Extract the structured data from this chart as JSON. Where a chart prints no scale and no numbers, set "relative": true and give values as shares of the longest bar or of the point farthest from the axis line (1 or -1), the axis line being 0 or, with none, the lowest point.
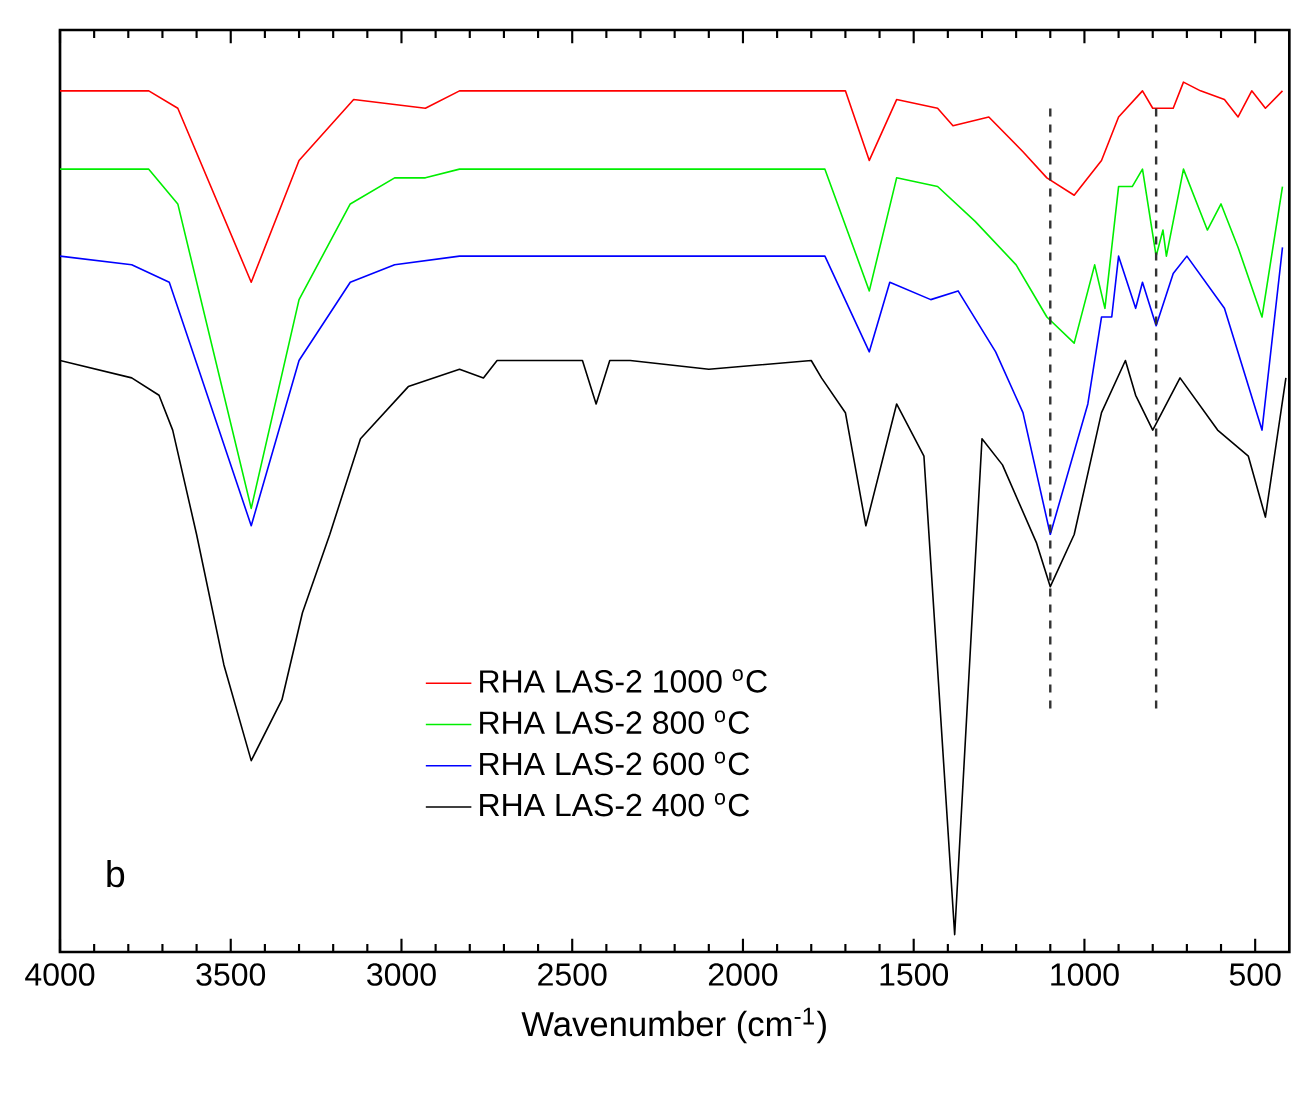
{
  "chart_data": {
    "type": "line",
    "relative": true,
    "xlabel": "Wavenumber (cm$^{-1}$)",
    "xlim": [
      4000,
      400
    ],
    "xticks": [
      4000,
      3500,
      3000,
      2500,
      2000,
      1500,
      1000,
      500
    ],
    "tick_labels": "x",
    "legend": "bottom",
    "annotations": [
      "b"
    ],
    "ref_lines": [
      {
        "axis": "x",
        "value": 1100,
        "color": "#333333",
        "line_style": "dashed"
      },
      {
        "axis": "x",
        "value": 790,
        "color": "#333333",
        "line_style": "dashed"
      }
    ],
    "series": [
      {
        "name": "RHA LAS-2 1000 $^{o}$C",
        "color": "#ff0000",
        "x": [
          4000,
          3740,
          3655,
          3440,
          3300,
          3140,
          2930,
          2830,
          1700,
          1630,
          1550,
          1430,
          1385,
          1280,
          1180,
          1110,
          1030,
          950,
          900,
          830,
          800,
          740,
          710,
          660,
          590,
          550,
          510,
          470,
          420
        ],
        "values": [
          0.99,
          0.99,
          0.97,
          0.77,
          0.91,
          0.98,
          0.97,
          0.99,
          0.99,
          0.91,
          0.98,
          0.97,
          0.95,
          0.96,
          0.92,
          0.89,
          0.87,
          0.91,
          0.96,
          0.99,
          0.97,
          0.97,
          1.0,
          0.99,
          0.98,
          0.96,
          0.99,
          0.97,
          0.99
        ]
      },
      {
        "name": "RHA LAS-2 800 $^{o}$C",
        "color": "#00ee00",
        "x": [
          4000,
          3740,
          3655,
          3440,
          3300,
          3150,
          3020,
          2930,
          2830,
          1760,
          1630,
          1550,
          1430,
          1320,
          1200,
          1110,
          1030,
          970,
          940,
          900,
          860,
          830,
          790,
          770,
          760,
          710,
          640,
          600,
          550,
          480,
          420
        ],
        "values": [
          0.9,
          0.9,
          0.86,
          0.51,
          0.75,
          0.86,
          0.89,
          0.89,
          0.9,
          0.9,
          0.76,
          0.89,
          0.88,
          0.84,
          0.79,
          0.73,
          0.7,
          0.79,
          0.74,
          0.88,
          0.88,
          0.9,
          0.8,
          0.83,
          0.8,
          0.9,
          0.83,
          0.86,
          0.81,
          0.73,
          0.88
        ]
      },
      {
        "name": "RHA LAS-2 600 $^{o}$C",
        "color": "#0000ff",
        "x": [
          4000,
          3790,
          3680,
          3620,
          3440,
          3300,
          3150,
          3020,
          2830,
          1760,
          1630,
          1570,
          1450,
          1370,
          1260,
          1180,
          1100,
          990,
          950,
          920,
          900,
          850,
          830,
          790,
          740,
          700,
          590,
          480,
          420
        ],
        "values": [
          0.8,
          0.79,
          0.77,
          0.7,
          0.49,
          0.68,
          0.77,
          0.79,
          0.8,
          0.8,
          0.69,
          0.77,
          0.75,
          0.76,
          0.69,
          0.62,
          0.48,
          0.63,
          0.73,
          0.73,
          0.8,
          0.74,
          0.77,
          0.72,
          0.78,
          0.8,
          0.74,
          0.6,
          0.81
        ]
      },
      {
        "name": "RHA LAS-2 400 $^{o}$C",
        "color": "#000000",
        "x": [
          4000,
          3790,
          3710,
          3670,
          3600,
          3520,
          3440,
          3350,
          3290,
          3210,
          3120,
          2980,
          2830,
          2760,
          2720,
          2470,
          2430,
          2390,
          2330,
          2100,
          1800,
          1770,
          1700,
          1640,
          1550,
          1470,
          1380,
          1300,
          1240,
          1140,
          1100,
          1030,
          950,
          880,
          850,
          800,
          720,
          610,
          520,
          470,
          410
        ],
        "values": [
          0.68,
          0.66,
          0.64,
          0.6,
          0.48,
          0.33,
          0.22,
          0.29,
          0.39,
          0.48,
          0.59,
          0.65,
          0.67,
          0.66,
          0.68,
          0.68,
          0.63,
          0.68,
          0.68,
          0.67,
          0.68,
          0.66,
          0.62,
          0.49,
          0.63,
          0.57,
          0.02,
          0.59,
          0.56,
          0.47,
          0.42,
          0.48,
          0.62,
          0.68,
          0.64,
          0.6,
          0.66,
          0.6,
          0.57,
          0.5,
          0.66
        ]
      }
    ]
  }
}
